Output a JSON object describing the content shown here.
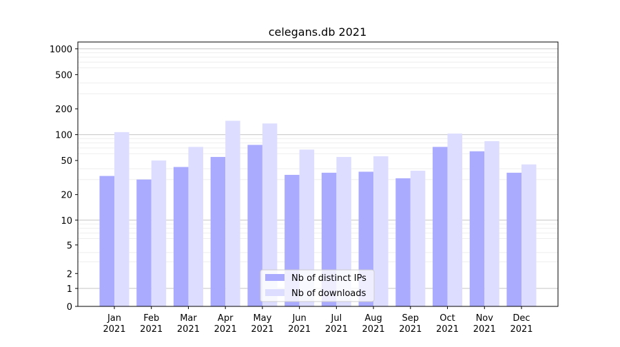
{
  "chart_data": {
    "type": "bar",
    "title": "celegans.db 2021",
    "xlabel": "",
    "ylabel": "",
    "yscale": "symlog",
    "ylim": [
      0,
      1200
    ],
    "yticks": [
      0,
      1,
      2,
      5,
      10,
      20,
      50,
      100,
      200,
      500,
      1000
    ],
    "ytick_labels": [
      "0",
      "1",
      "2",
      "5",
      "10",
      "20",
      "50",
      "100",
      "200",
      "500",
      "1000"
    ],
    "grid": true,
    "legend_position": "bottom-center",
    "categories": [
      {
        "month": "Jan",
        "year": "2021"
      },
      {
        "month": "Feb",
        "year": "2021"
      },
      {
        "month": "Mar",
        "year": "2021"
      },
      {
        "month": "Apr",
        "year": "2021"
      },
      {
        "month": "May",
        "year": "2021"
      },
      {
        "month": "Jun",
        "year": "2021"
      },
      {
        "month": "Jul",
        "year": "2021"
      },
      {
        "month": "Aug",
        "year": "2021"
      },
      {
        "month": "Sep",
        "year": "2021"
      },
      {
        "month": "Oct",
        "year": "2021"
      },
      {
        "month": "Nov",
        "year": "2021"
      },
      {
        "month": "Dec",
        "year": "2021"
      }
    ],
    "series": [
      {
        "name": "Nb of distinct IPs",
        "color": "#aaaaff",
        "values": [
          33,
          30,
          42,
          55,
          76,
          34,
          36,
          37,
          31,
          72,
          64,
          36
        ]
      },
      {
        "name": "Nb of downloads",
        "color": "#ddddff",
        "values": [
          107,
          50,
          72,
          145,
          135,
          67,
          55,
          56,
          38,
          103,
          84,
          45
        ]
      }
    ]
  }
}
